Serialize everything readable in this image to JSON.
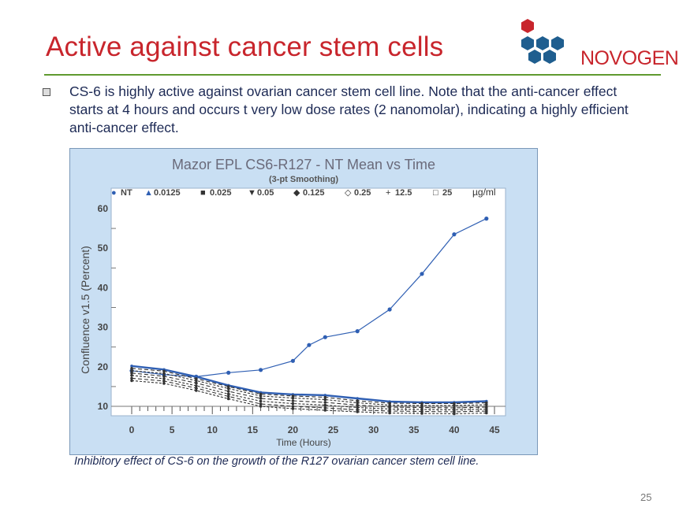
{
  "slide": {
    "title": "Active against cancer stem cells",
    "logo_text": "NOVOGEN",
    "bullet": "CS-6 is highly active against ovarian cancer stem cell line. Note that the anti-cancer effect starts at 4 hours and occurs t very low dose rates (2 nanomolar), indicating a highly efficient anti-cancer effect.",
    "caption": "Inhibitory effect of CS-6 on the growth of the R127 ovarian cancer stem cell line.",
    "page_number": "25"
  },
  "colors": {
    "title": "#c8252c",
    "rule": "#5f9a2f",
    "logo_red": "#c8252c",
    "logo_blue": "#1f5e8f",
    "chart_bg": "#c9dff3",
    "plot_bg": "#ffffff",
    "nt_series": "#2f5fb3",
    "treated_series": "#333333"
  },
  "chart_data": {
    "type": "line",
    "title": "Mazor EPL CS6-R127 - NT Mean vs Time",
    "subtitle": "(3-pt Smoothing)",
    "xlabel": "Time (Hours)",
    "ylabel": "Confluence v1.5 (Percent)",
    "xlim": [
      0,
      45
    ],
    "ylim": [
      10,
      60
    ],
    "x_ticks": [
      "0",
      "5",
      "10",
      "15",
      "20",
      "25",
      "30",
      "35",
      "40",
      "45"
    ],
    "y_ticks": [
      "10",
      "20",
      "30",
      "40",
      "50",
      "60"
    ],
    "legend_unit": "µg/ml",
    "legend_position": "top",
    "series": [
      {
        "name": "NT",
        "color": "#2f5fb3",
        "marker": "●",
        "x": [
          0,
          4,
          8,
          12,
          16,
          20,
          22,
          24,
          28,
          32,
          36,
          40,
          44
        ],
        "y": [
          19,
          18,
          17.5,
          18.5,
          19.2,
          21.5,
          25.5,
          27.5,
          29,
          34.5,
          43.5,
          53.5,
          57.5
        ]
      },
      {
        "name": "0.0125",
        "color": "#2f5fb3",
        "marker": "▲",
        "x": [
          0,
          4,
          8,
          12,
          16,
          20,
          24,
          28,
          32,
          36,
          40,
          44
        ],
        "y": [
          20.2,
          19.3,
          17.5,
          15.3,
          13.5,
          13,
          12.8,
          12,
          11.2,
          11,
          11,
          11.3
        ]
      },
      {
        "name": "0.025",
        "color": "#333333",
        "marker": "■",
        "x": [
          0,
          4,
          8,
          12,
          16,
          20,
          24,
          28,
          32,
          36,
          40,
          44
        ],
        "y": [
          19.6,
          18.9,
          17,
          15,
          13.1,
          12.6,
          12.3,
          11.4,
          10.8,
          10.7,
          10.7,
          10.9
        ]
      },
      {
        "name": "0.05",
        "color": "#333333",
        "marker": "▼",
        "x": [
          0,
          4,
          8,
          12,
          16,
          20,
          24,
          28,
          32,
          36,
          40,
          44
        ],
        "y": [
          19,
          18.3,
          16.5,
          14.5,
          12.6,
          12.1,
          11.7,
          10.9,
          10.3,
          10.2,
          10.2,
          10.4
        ]
      },
      {
        "name": "0.125",
        "color": "#333333",
        "marker": "◆",
        "x": [
          0,
          4,
          8,
          12,
          16,
          20,
          24,
          28,
          32,
          36,
          40,
          44
        ],
        "y": [
          18.4,
          17.6,
          15.9,
          13.8,
          12,
          11.4,
          11,
          10.3,
          9.8,
          9.7,
          9.6,
          9.8
        ]
      },
      {
        "name": "0.25",
        "color": "#333333",
        "marker": "◇",
        "x": [
          0,
          4,
          8,
          12,
          16,
          20,
          24,
          28,
          32,
          36,
          40,
          44
        ],
        "y": [
          17.8,
          17,
          15.2,
          13.1,
          11.3,
          10.7,
          10.3,
          9.7,
          9.3,
          9.2,
          9.1,
          9.3
        ]
      },
      {
        "name": "12.5",
        "color": "#333333",
        "marker": "+",
        "x": [
          0,
          4,
          8,
          12,
          16,
          20,
          24,
          28,
          32,
          36,
          40,
          44
        ],
        "y": [
          17.1,
          16.4,
          14.6,
          12.5,
          10.6,
          10,
          9.6,
          9.1,
          8.8,
          8.7,
          8.6,
          8.8
        ]
      },
      {
        "name": "25",
        "color": "#333333",
        "marker": "□",
        "x": [
          0,
          4,
          8,
          12,
          16,
          20,
          24,
          28,
          32,
          36,
          40,
          44
        ],
        "y": [
          16.5,
          15.8,
          14,
          11.9,
          10,
          9.4,
          9,
          8.6,
          8.3,
          8.2,
          8.1,
          8.3
        ]
      }
    ]
  }
}
